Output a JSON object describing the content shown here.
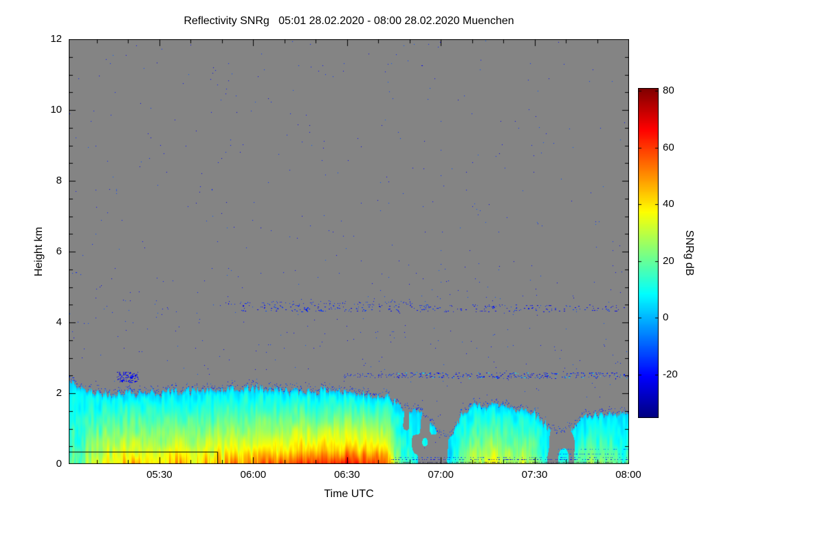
{
  "figure": {
    "background": "#ffffff",
    "no_signal_color": "#848484"
  },
  "chart_data": {
    "type": "heatmap",
    "title": "Reflectivity SNRg   05:01 28.02.2020 - 08:00 28.02.2020 Muenchen",
    "instrument_product": "Reflectivity SNRg",
    "time_start": "05:01 28.02.2020",
    "time_end": "08:00 28.02.2020",
    "station": "Muenchen",
    "xlabel": "Time UTC",
    "ylabel": "Height km",
    "duration_min": 179,
    "ylim": [
      0,
      12
    ],
    "y_major_ticks": [
      0,
      2,
      4,
      6,
      8,
      10,
      12
    ],
    "y_minor_step_km": 0.5,
    "x_ticks": [
      {
        "label": "05:30",
        "min": 29
      },
      {
        "label": "06:00",
        "min": 59
      },
      {
        "label": "06:30",
        "min": 89
      },
      {
        "label": "07:00",
        "min": 119
      },
      {
        "label": "07:30",
        "min": 149
      },
      {
        "label": "08:00",
        "min": 179
      }
    ],
    "x_minor_step_min": 10,
    "colorbar": {
      "label": "SNRg dB",
      "units": "dB",
      "ticks": [
        80,
        60,
        40,
        20,
        0,
        -20
      ],
      "range": [
        -35,
        81
      ],
      "colormap": "jet"
    },
    "cloud_profile": {
      "comment_t_min_is_minutes_after_0501_utc": true,
      "t_min": [
        0,
        6,
        12,
        20,
        28,
        36,
        44,
        52,
        60,
        68,
        76,
        84,
        92,
        98,
        102,
        106,
        110,
        114,
        118,
        122,
        126,
        130,
        136,
        142,
        148,
        154,
        158,
        162,
        166,
        172,
        179
      ],
      "top_km": [
        2.35,
        2.05,
        2.0,
        2.05,
        2.0,
        2.1,
        2.05,
        2.1,
        2.15,
        2.1,
        2.05,
        2.1,
        2.0,
        1.95,
        1.9,
        1.6,
        1.5,
        1.4,
        0.8,
        0.7,
        1.5,
        1.65,
        1.7,
        1.6,
        1.5,
        1.0,
        0.8,
        1.2,
        1.4,
        1.35,
        1.45
      ],
      "base_db": [
        16,
        30,
        36,
        40,
        38,
        42,
        40,
        44,
        48,
        50,
        52,
        54,
        56,
        56,
        50,
        16,
        14,
        13,
        10,
        10,
        24,
        30,
        32,
        30,
        26,
        12,
        10,
        16,
        22,
        22,
        20
      ],
      "coverage": [
        0.75,
        1,
        1,
        1,
        1,
        1,
        1,
        1,
        1,
        1,
        1,
        1,
        1,
        1,
        0.95,
        0.55,
        0.5,
        0.5,
        0.45,
        0.4,
        0.8,
        0.95,
        1,
        0.95,
        0.85,
        0.45,
        0.4,
        0.7,
        0.95,
        0.9,
        0.95
      ]
    },
    "speckle_bands_km": [
      4.4,
      2.5
    ],
    "overlay_line": {
      "points_min_km": [
        [
          0,
          0.35
        ],
        [
          47.5,
          0.35
        ],
        [
          47.5,
          0
        ]
      ]
    }
  }
}
